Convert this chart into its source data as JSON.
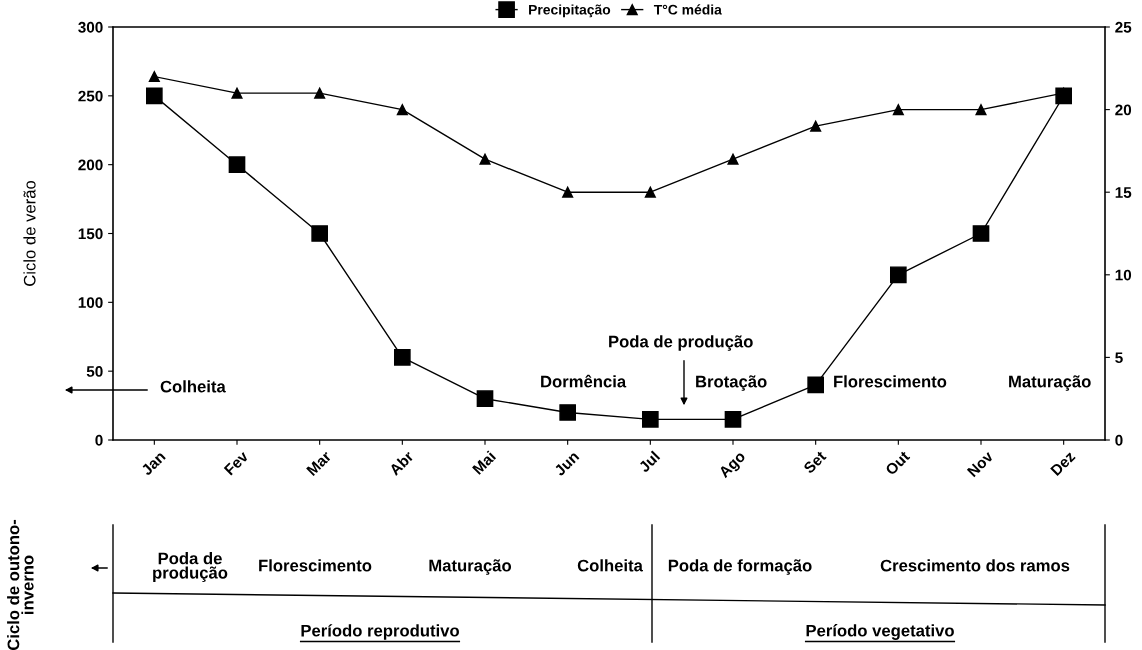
{
  "chart_data": {
    "type": "line",
    "ylabel": "Ciclo de verão",
    "categories": [
      "Jan",
      "Fev",
      "Mar",
      "Abr",
      "Mai",
      "Jun",
      "Jul",
      "Ago",
      "Set",
      "Out",
      "Nov",
      "Dez"
    ],
    "series": [
      {
        "name": "Precipitação",
        "color": "#000000",
        "marker": "square",
        "values": [
          250,
          200,
          150,
          60,
          30,
          20,
          15,
          15,
          40,
          120,
          150,
          250
        ]
      },
      {
        "name": "T°C média",
        "color": "#000000",
        "marker": "triangle",
        "axis": "y2",
        "values": [
          22,
          21,
          21,
          20,
          17,
          15,
          15,
          17,
          19,
          20,
          20,
          21
        ]
      }
    ],
    "ylim": [
      0,
      300
    ],
    "yticks": [
      0,
      50,
      100,
      150,
      200,
      250,
      300
    ],
    "y2lim": [
      0,
      25
    ],
    "y2ticks": [
      0,
      5,
      10,
      15,
      20,
      25
    ],
    "legend": "top",
    "grid": false,
    "line_style": "solid",
    "annotations": [
      "Colheita",
      "Dormência",
      "Poda de produção",
      "Brotação",
      "Florescimento",
      "Maturação",
      "Ciclo de outono-\ninverno",
      "Poda de\nprodução",
      "Florescimento",
      "Maturação",
      "Colheita",
      "Poda de formação",
      "Crescimento dos ramos",
      "Período reprodutivo",
      "Período vegetativo"
    ]
  }
}
